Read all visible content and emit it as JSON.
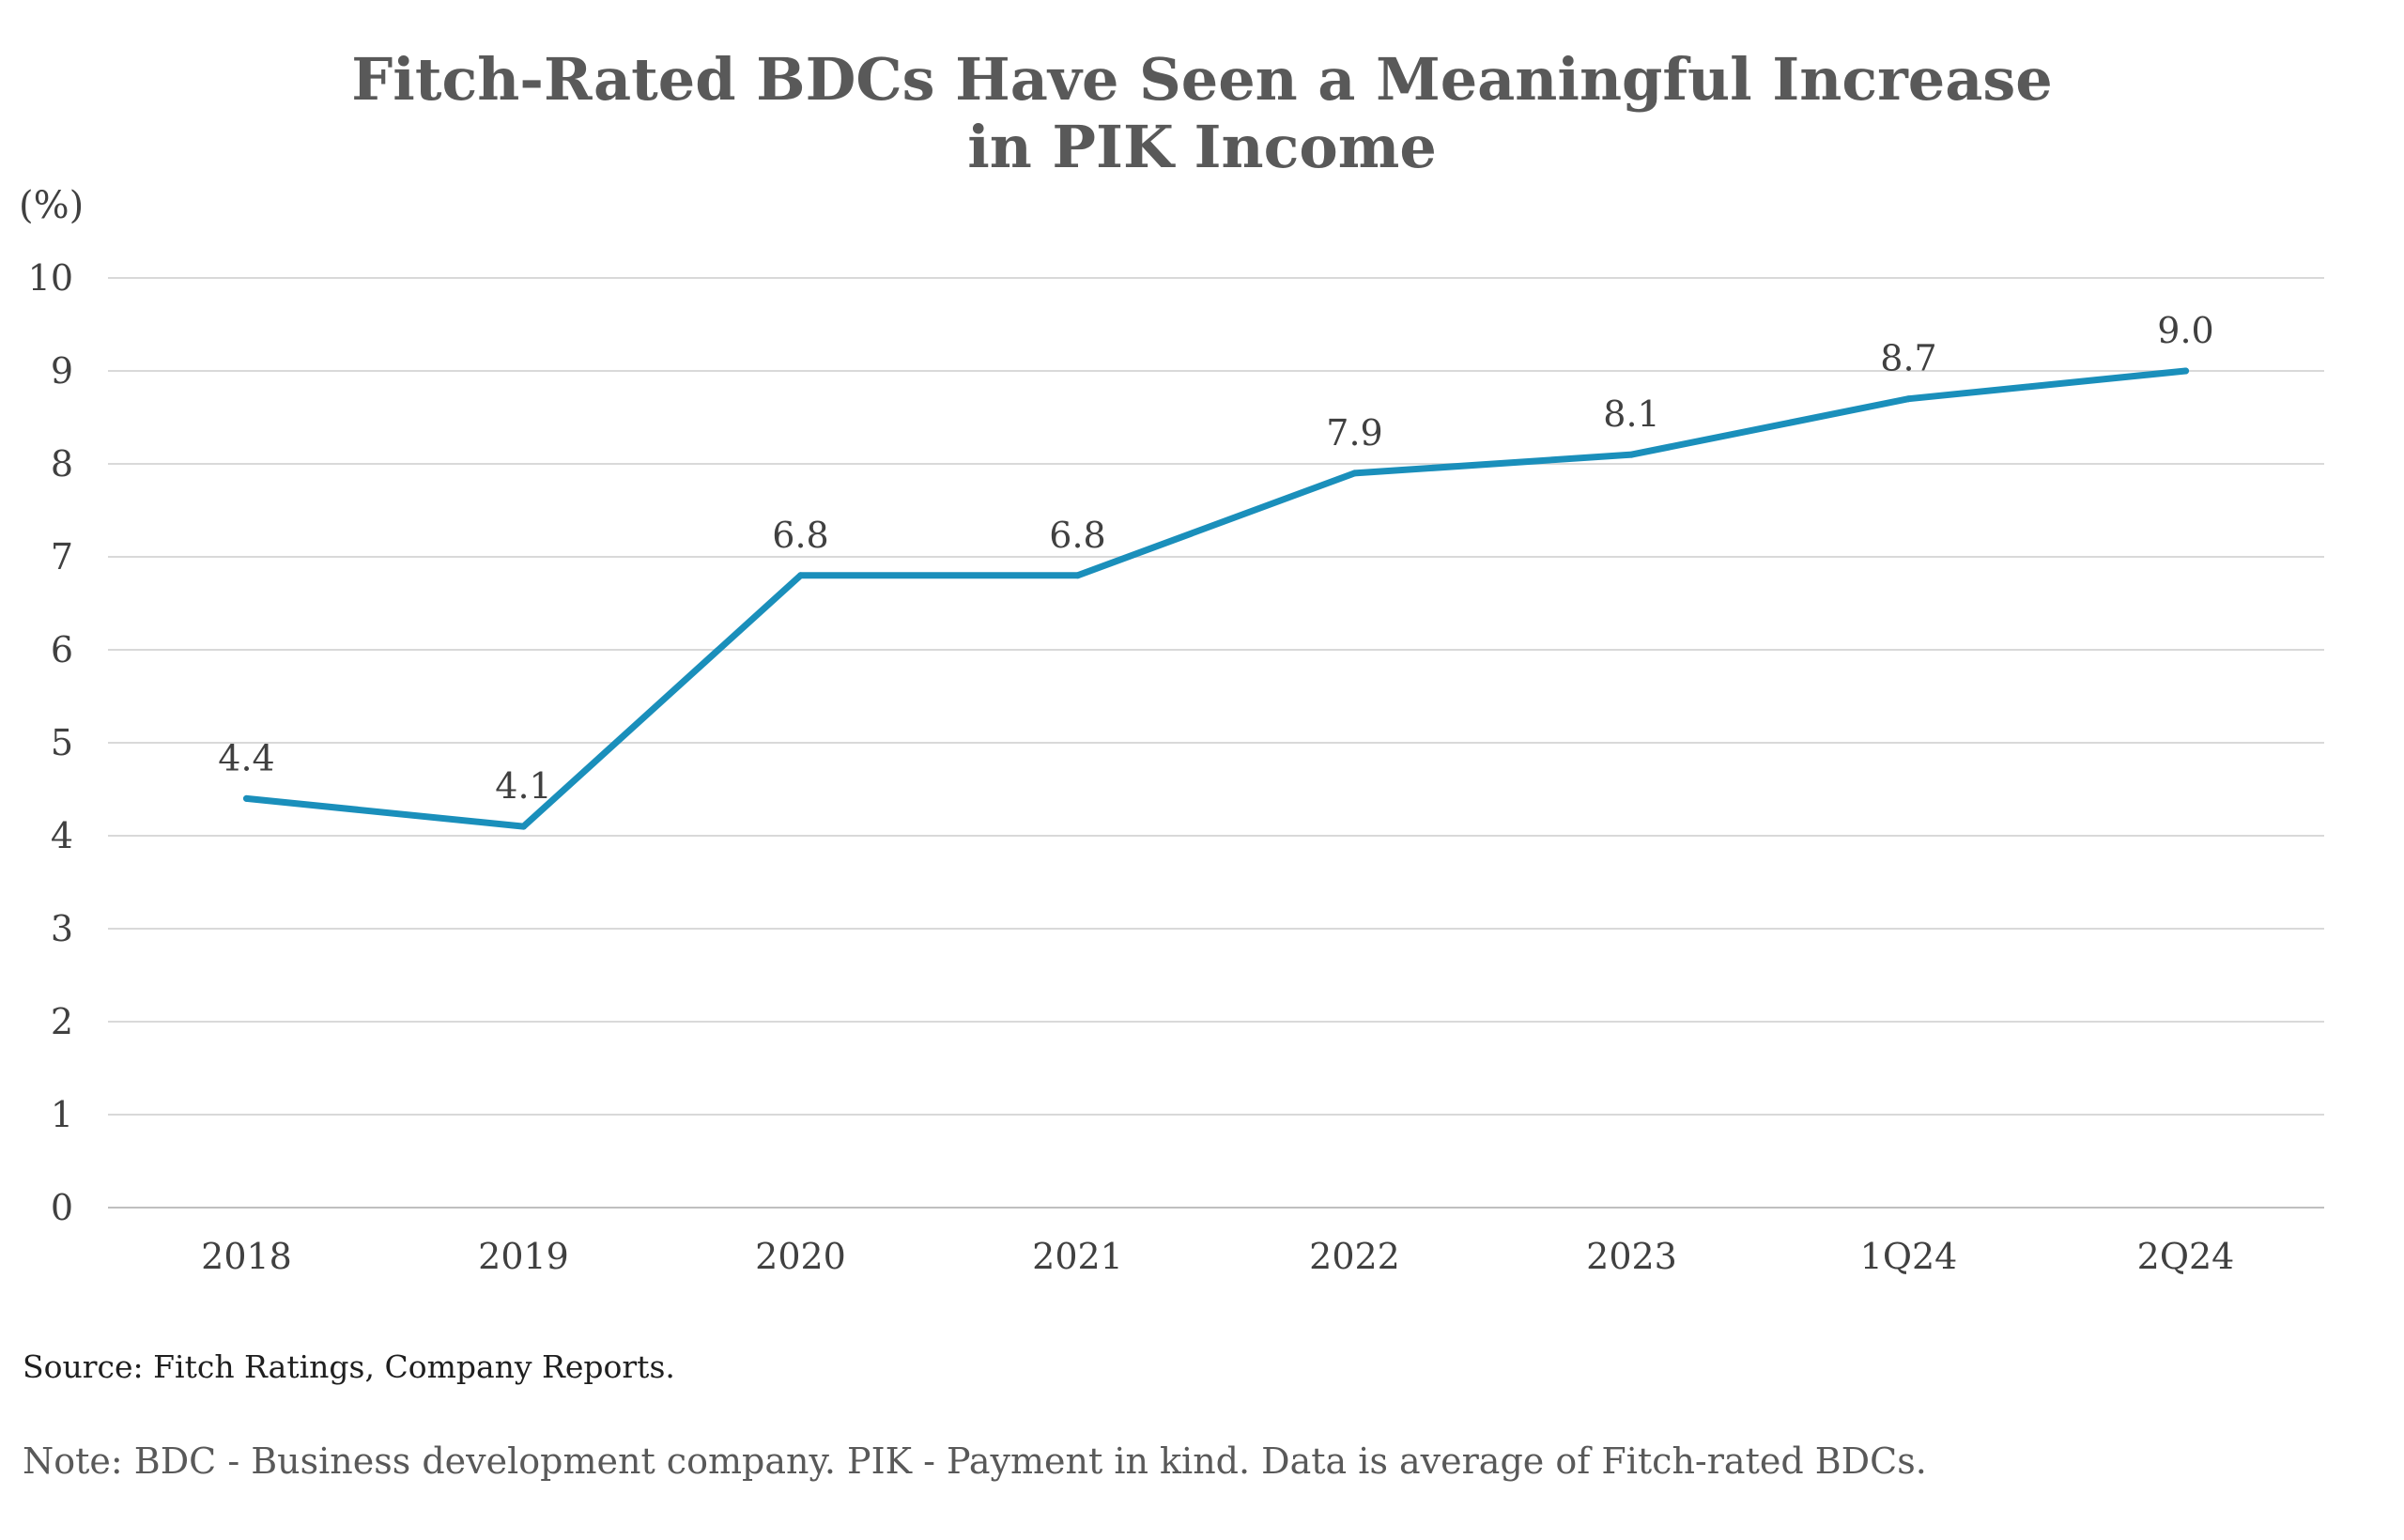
{
  "chart_data": {
    "type": "line",
    "title": "Fitch-Rated BDCs Have Seen a Meaningful Increase in PIK Income",
    "title_lines": [
      "Fitch-Rated BDCs Have Seen a Meaningful Increase",
      "in PIK Income"
    ],
    "ylabel": "(%)",
    "xlabel": "",
    "categories": [
      "2018",
      "2019",
      "2020",
      "2021",
      "2022",
      "2023",
      "1Q24",
      "2Q24"
    ],
    "series": [
      {
        "values": [
          4.4,
          4.1,
          6.8,
          6.8,
          7.9,
          8.1,
          8.7,
          9.0
        ],
        "labels": [
          "4.4",
          "4.1",
          "6.8",
          "6.8",
          "7.9",
          "8.1",
          "8.7",
          "9.0"
        ],
        "color": "#1a8fbb"
      }
    ],
    "ylim": [
      0,
      10
    ],
    "yticks": [
      0,
      1,
      2,
      3,
      4,
      5,
      6,
      7,
      8,
      9,
      10
    ],
    "grid": true,
    "legend": "none"
  },
  "footer": {
    "source": "Source: Fitch Ratings, Company Reports.",
    "note": "Note: BDC - Business development company. PIK - Payment in kind. Data is average of Fitch-rated BDCs."
  }
}
